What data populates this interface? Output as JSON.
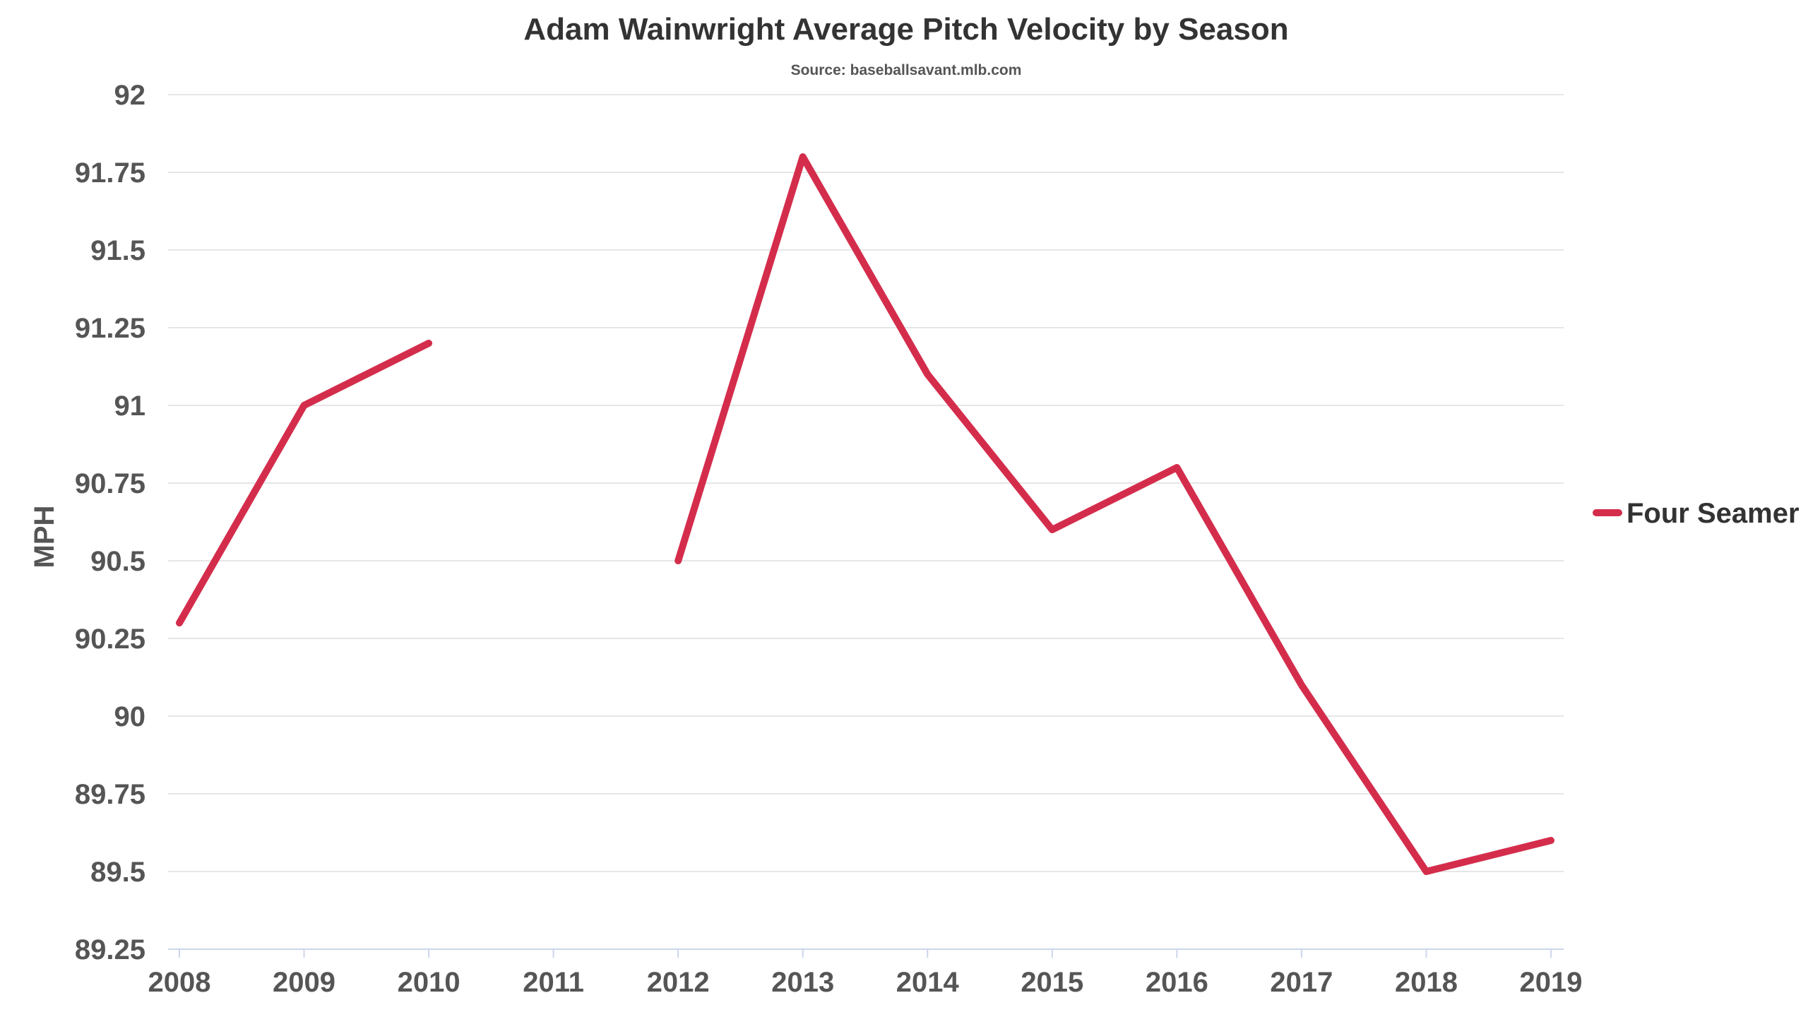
{
  "chart_data": {
    "type": "line",
    "title": "Adam Wainwright Average Pitch Velocity by Season",
    "subtitle": "Source: baseballsavant.mlb.com",
    "xlabel": "",
    "ylabel": "MPH",
    "x": [
      2008,
      2009,
      2010,
      2011,
      2012,
      2013,
      2014,
      2015,
      2016,
      2017,
      2018,
      2019
    ],
    "x_tick_labels": [
      "2008",
      "2009",
      "2010",
      "2011",
      "2012",
      "2013",
      "2014",
      "2015",
      "2016",
      "2017",
      "2018",
      "2019"
    ],
    "ylim": [
      89.25,
      92
    ],
    "y_ticks": [
      89.25,
      89.5,
      89.75,
      90,
      90.25,
      90.5,
      90.75,
      91,
      91.25,
      91.5,
      91.75,
      92
    ],
    "y_tick_labels": [
      "89.25",
      "89.5",
      "89.75",
      "90",
      "90.25",
      "90.5",
      "90.75",
      "91",
      "91.25",
      "91.5",
      "91.75",
      "92"
    ],
    "grid": true,
    "legend_position": "right",
    "series": [
      {
        "name": "Four Seamer",
        "color": "#d42d4c",
        "values": [
          90.3,
          91.0,
          91.2,
          null,
          90.5,
          91.8,
          91.1,
          90.6,
          90.8,
          90.1,
          89.5,
          89.6
        ]
      }
    ]
  }
}
